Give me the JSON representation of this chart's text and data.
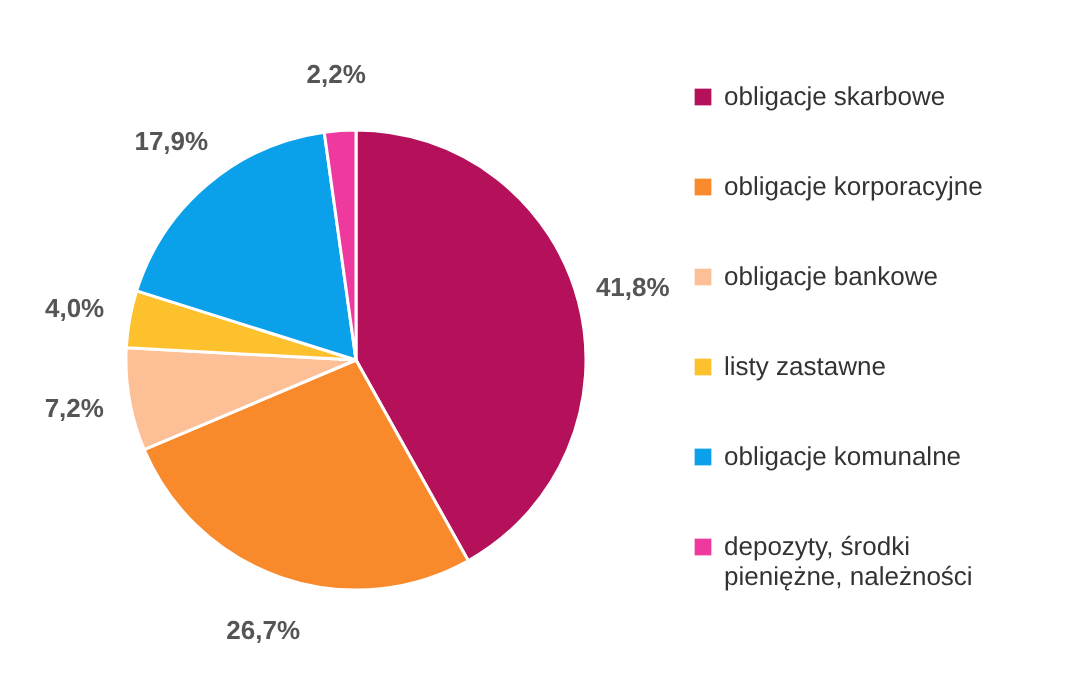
{
  "chart_data": {
    "type": "pie",
    "categories": [
      "obligacje skarbowe",
      "obligacje korporacyjne",
      "obligacje bankowe",
      "listy zastawne",
      "obligacje komunalne",
      "depozyty, środki pieniężne, należności"
    ],
    "values": [
      41.8,
      26.7,
      7.2,
      4.0,
      17.9,
      2.2
    ],
    "colors": [
      "#b5105a",
      "#f98a2c",
      "#fcbf96",
      "#fdc12e",
      "#0aa0ea",
      "#ee3a9e"
    ],
    "value_labels": [
      "41,8%",
      "26,7%",
      "7,2%",
      "4,0%",
      "17,9%",
      "2,2%"
    ],
    "legend": "right"
  }
}
